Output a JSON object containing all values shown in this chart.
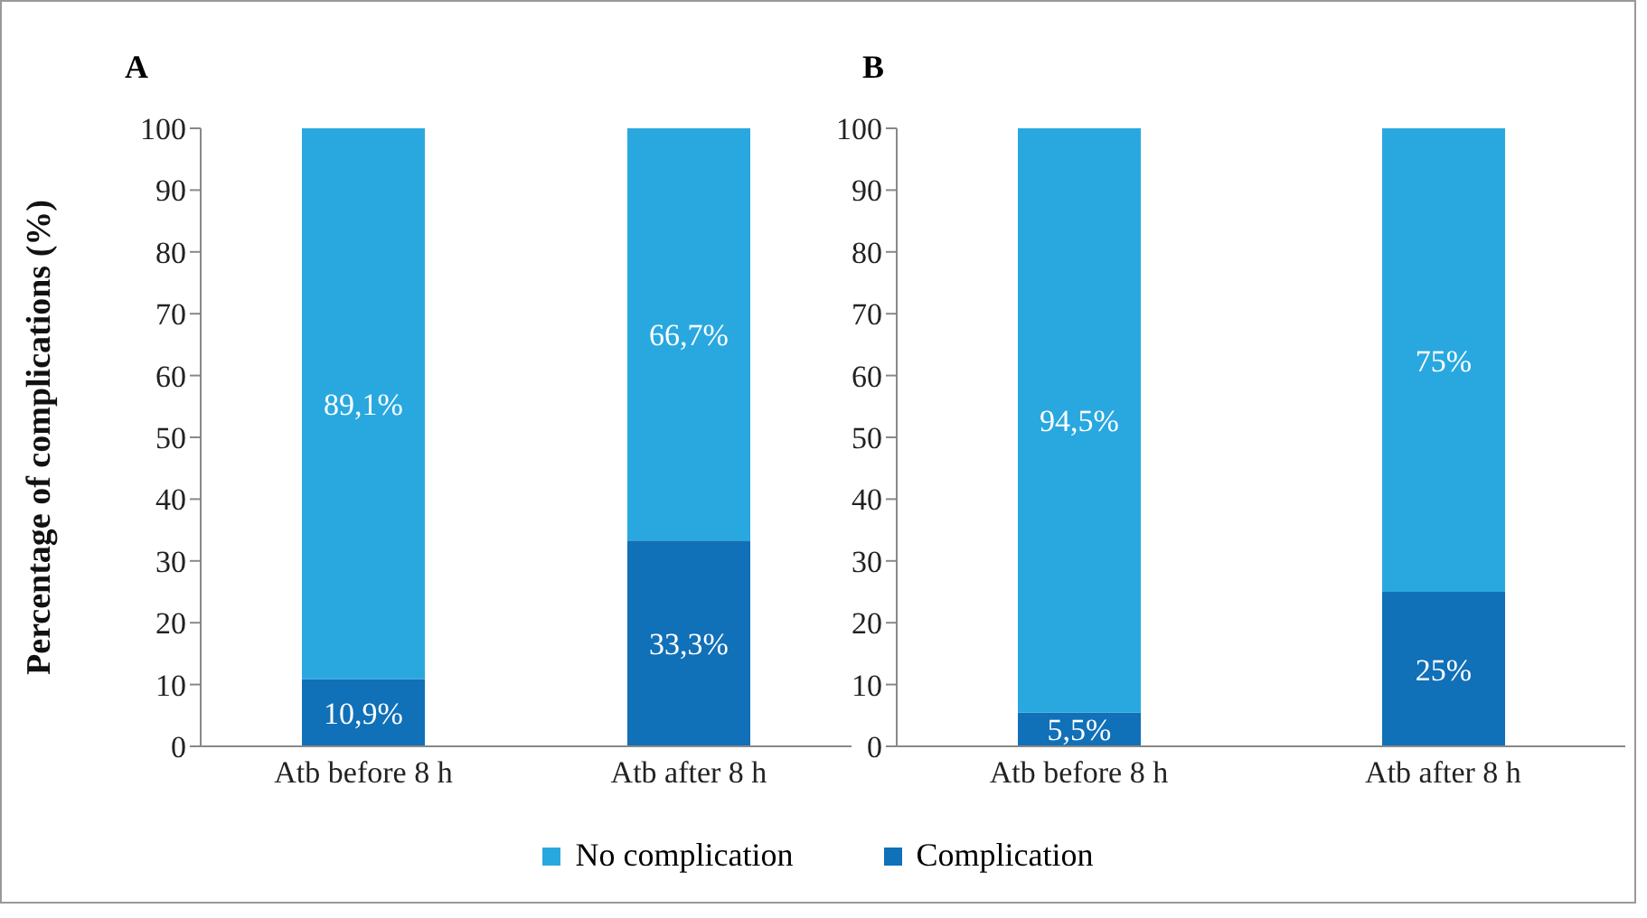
{
  "chart_data": [
    {
      "type": "bar",
      "title": "A",
      "ylabel": "Percentage of complications (%)",
      "categories": [
        "Atb before 8 h",
        "Atb after 8 h"
      ],
      "stacked": true,
      "ylim": [
        0,
        100
      ],
      "yticks": [
        0,
        10,
        20,
        30,
        40,
        50,
        60,
        70,
        80,
        90,
        100
      ],
      "legend": "bottom",
      "series": [
        {
          "name": "Complication",
          "color": "#1070b8",
          "values": [
            10.9,
            33.3
          ],
          "value_labels": [
            "10,9%",
            "33,3%"
          ]
        },
        {
          "name": "No complication",
          "color": "#29a8e0",
          "values": [
            89.1,
            66.7
          ],
          "value_labels": [
            "89,1%",
            "66,7%"
          ]
        }
      ]
    },
    {
      "type": "bar",
      "title": "B",
      "categories": [
        "Atb before 8 h",
        "Atb after 8 h"
      ],
      "stacked": true,
      "ylim": [
        0,
        100
      ],
      "yticks": [
        0,
        10,
        20,
        30,
        40,
        50,
        60,
        70,
        80,
        90,
        100
      ],
      "series": [
        {
          "color": "#1070b8",
          "values": [
            5.5,
            25
          ],
          "value_labels": [
            "5,5%",
            "25%"
          ]
        },
        {
          "color": "#29a8e0",
          "values": [
            94.5,
            75
          ],
          "value_labels": [
            "94,5%",
            "75%"
          ]
        }
      ]
    }
  ]
}
